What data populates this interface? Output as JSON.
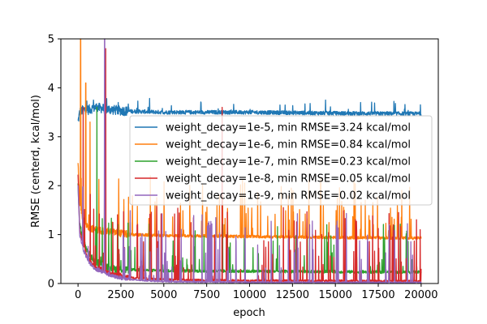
{
  "chart_data": {
    "type": "line",
    "title": "",
    "xlabel": "epoch",
    "ylabel": "RMSE (centerd, kcal/mol)",
    "xlim": [
      -1000,
      21000
    ],
    "ylim": [
      0,
      5
    ],
    "x_ticks": [
      0,
      2500,
      5000,
      7500,
      10000,
      12500,
      15000,
      17500,
      20000
    ],
    "y_ticks": [
      0,
      1,
      2,
      3,
      4,
      5
    ],
    "x_tick_labels": [
      "0",
      "2500",
      "5000",
      "7500",
      "10000",
      "12500",
      "15000",
      "17500",
      "20000"
    ],
    "y_tick_labels": [
      "0",
      "1",
      "2",
      "3",
      "4",
      "5"
    ],
    "grid": false,
    "legend_position": "center-right",
    "x_range": [
      0,
      20000
    ],
    "series": [
      {
        "name": "weight_decay=1e-5, min RMSE=3.24 kcal/mol",
        "color": "#1f77b4",
        "envelope_x": [
          0,
          100,
          300,
          600,
          1000,
          2000,
          3000,
          5000,
          10000,
          15000,
          20000
        ],
        "envelope_y": [
          3.3,
          3.5,
          3.55,
          3.55,
          3.6,
          3.55,
          3.52,
          3.5,
          3.5,
          3.48,
          3.47
        ],
        "noise": 0.04,
        "spike_prob": 0.035,
        "spike_max": 0.25
      },
      {
        "name": "weight_decay=1e-6, min RMSE=0.84 kcal/mol",
        "color": "#ff7f0e",
        "envelope_x": [
          0,
          100,
          300,
          600,
          1000,
          2000,
          3000,
          5000,
          10000,
          15000,
          20000
        ],
        "envelope_y": [
          2.5,
          1.6,
          1.3,
          1.15,
          1.1,
          1.05,
          1.0,
          0.98,
          0.96,
          0.94,
          0.93
        ],
        "noise": 0.03,
        "spike_prob": 0.06,
        "spike_max": 1.2
      },
      {
        "name": "weight_decay=1e-7, min RMSE=0.23 kcal/mol",
        "color": "#2ca02c",
        "envelope_x": [
          0,
          100,
          300,
          600,
          1000,
          2000,
          3000,
          5000,
          10000,
          15000,
          20000
        ],
        "envelope_y": [
          2.0,
          1.2,
          0.9,
          0.6,
          0.45,
          0.3,
          0.28,
          0.26,
          0.25,
          0.24,
          0.23
        ],
        "noise": 0.03,
        "spike_prob": 0.05,
        "spike_max": 1.0
      },
      {
        "name": "weight_decay=1e-8, min RMSE=0.05 kcal/mol",
        "color": "#d62728",
        "envelope_x": [
          0,
          100,
          300,
          600,
          1000,
          2000,
          3000,
          5000,
          10000,
          15000,
          20000
        ],
        "envelope_y": [
          2.2,
          1.1,
          0.8,
          0.5,
          0.35,
          0.2,
          0.12,
          0.08,
          0.06,
          0.055,
          0.05
        ],
        "noise": 0.02,
        "spike_prob": 0.06,
        "spike_max": 1.5
      },
      {
        "name": "weight_decay=1e-9, min RMSE=0.02 kcal/mol",
        "color": "#9467bd",
        "envelope_x": [
          0,
          100,
          300,
          600,
          1000,
          2000,
          3000,
          5000,
          10000,
          15000,
          20000
        ],
        "envelope_y": [
          2.0,
          1.0,
          0.7,
          0.45,
          0.3,
          0.15,
          0.08,
          0.04,
          0.025,
          0.022,
          0.02
        ],
        "noise": 0.015,
        "spike_prob": 0.07,
        "spike_max": 1.4
      }
    ],
    "peaks": [
      {
        "series": 1,
        "x": 150,
        "y": 5.0
      },
      {
        "series": 1,
        "x": 450,
        "y": 4.1
      },
      {
        "series": 3,
        "x": 300,
        "y": 3.6
      },
      {
        "series": 1,
        "x": 700,
        "y": 3.3
      },
      {
        "series": 4,
        "x": 1550,
        "y": 5.0
      },
      {
        "series": 3,
        "x": 1620,
        "y": 4.8
      },
      {
        "series": 2,
        "x": 1100,
        "y": 3.6
      },
      {
        "series": 3,
        "x": 8400,
        "y": 3.6
      },
      {
        "series": 0,
        "x": 900,
        "y": 3.75
      }
    ]
  }
}
